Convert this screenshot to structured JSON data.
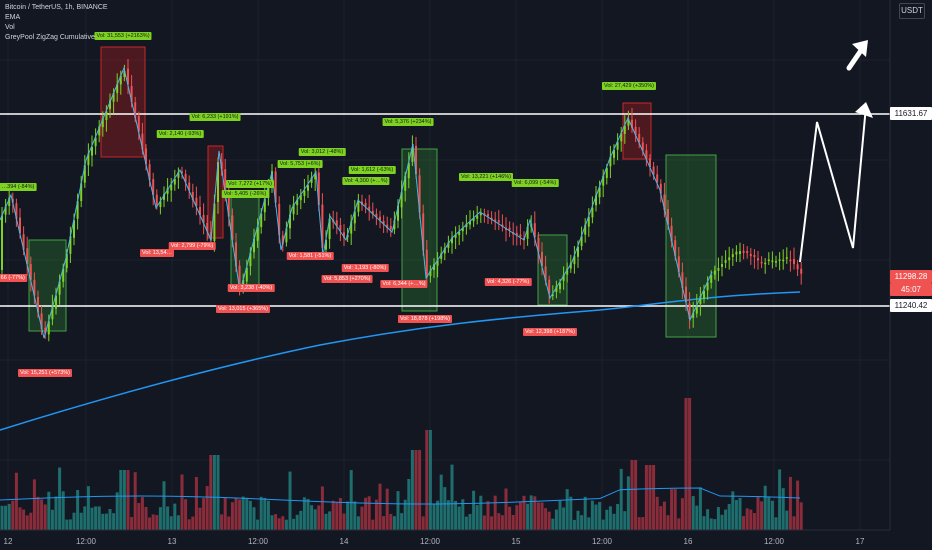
{
  "legend": {
    "line1": "Bitcoin / TetherUS, 1h, BINANCE",
    "line2": "EMA",
    "line3": "Vol",
    "line4": "GreyPool ZigZag Cumulative Volum"
  },
  "currency_button": "USDT",
  "price_labels": {
    "resistance": "11631.67",
    "current": "11298.28",
    "support": "11240.42",
    "countdown": "45:07"
  },
  "time_labels": [
    "12",
    "12:00",
    "13",
    "12:00",
    "14",
    "12:00",
    "15",
    "12:00",
    "16",
    "12:00",
    "17"
  ],
  "chart_data": {
    "type": "candlestick",
    "symbol": "BTCUSDT",
    "timeframe": "1h",
    "exchange": "BINANCE",
    "ylim": [
      11050,
      11750
    ],
    "horizontal_levels": [
      11631.67,
      11240.42
    ],
    "current_price": 11298.28,
    "axis_ticks_x": [
      "12",
      "12:00",
      "13",
      "12:00",
      "14",
      "12:00",
      "15",
      "12:00",
      "16",
      "12:00",
      "17"
    ],
    "zigzag_annotations": [
      {
        "text": "Vol: 31,553 (+2163%)",
        "type": "high"
      },
      {
        "text": "Vol: 6,233 (+191%)",
        "type": "high"
      },
      {
        "text": "Vol: 2,140 (-93%)",
        "type": "high"
      },
      {
        "text": "Vol: 7,272 (+17%)",
        "type": "high"
      },
      {
        "text": "Vol: 5,753 (+6%)",
        "type": "high"
      },
      {
        "text": "Vol: 5,405 (-26%)",
        "type": "high"
      },
      {
        "text": "Vol: 3,012 (-48%)",
        "type": "high"
      },
      {
        "text": "Vol: 5,376 (+234%)",
        "type": "high"
      },
      {
        "text": "Vol: 1,612 (-63%)",
        "type": "high"
      },
      {
        "text": "Vol: 4,300 (+…%)",
        "type": "high"
      },
      {
        "text": "Vol: 13,221 (+146%)",
        "type": "high"
      },
      {
        "text": "Vol: 6,099 (-54%)",
        "type": "high"
      },
      {
        "text": "Vol: 27,429 (+350%)",
        "type": "high"
      },
      {
        "text": "…394 (-84%)",
        "type": "high"
      },
      {
        "text": "…66 (-77%)",
        "type": "low"
      },
      {
        "text": "Vol: 15,251 (+573%)",
        "type": "low"
      },
      {
        "text": "Vol: 13,54…",
        "type": "low"
      },
      {
        "text": "Vol: 2,799 (-79%)",
        "type": "low"
      },
      {
        "text": "Vol: 3,238 (-40%)",
        "type": "low"
      },
      {
        "text": "Vol: 13,015 (+365%)",
        "type": "low"
      },
      {
        "text": "Vol: 1,581 (-51%)",
        "type": "low"
      },
      {
        "text": "Vol: 1,193 (-80%)",
        "type": "low"
      },
      {
        "text": "Vol: 5,853 (+270%)",
        "type": "low"
      },
      {
        "text": "Vol: 6,344 (+…%)",
        "type": "low"
      },
      {
        "text": "Vol: 18,878 (+198%)",
        "type": "low"
      },
      {
        "text": "Vol: 4,326 (-77%)",
        "type": "low"
      },
      {
        "text": "Vol: 12,398 (+187%)",
        "type": "low"
      }
    ]
  },
  "colors": {
    "background": "#131722",
    "up": "#7ed321",
    "down": "#f05252",
    "ema": "#2196f3",
    "zigzag": "#4db6e8",
    "level_line": "#ffffff",
    "vol_up": "#1e6e6e",
    "vol_down": "#8a2c3a"
  }
}
